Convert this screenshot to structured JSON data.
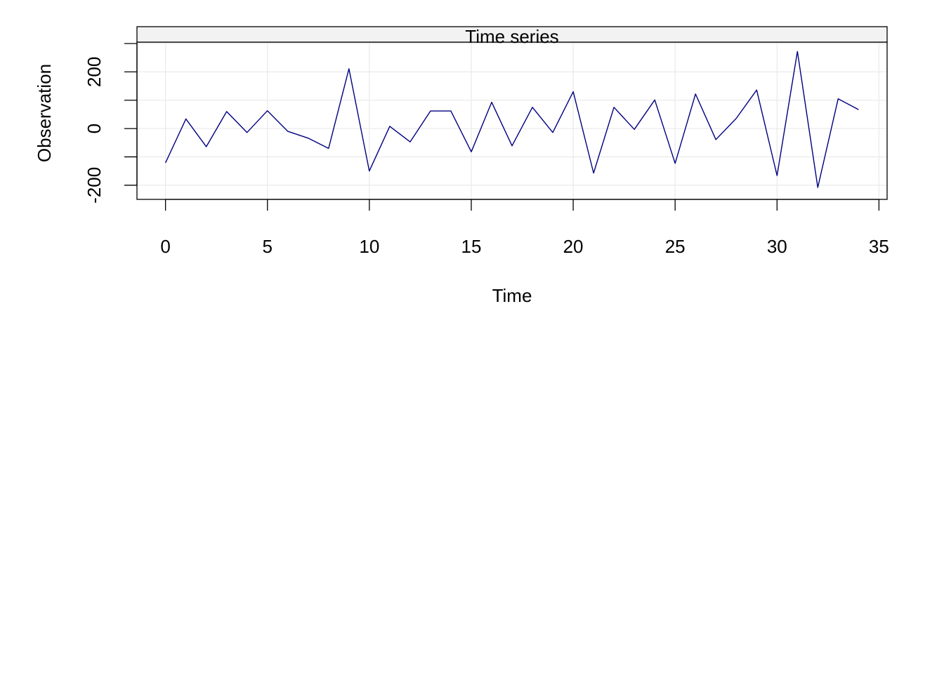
{
  "chart_data": {
    "type": "line",
    "strip_title": "Time series",
    "xlabel": "Time",
    "ylabel": "Observation",
    "xlim": [
      -1.4,
      35.4
    ],
    "ylim": [
      -250,
      305
    ],
    "x_ticks": [
      0,
      5,
      10,
      15,
      20,
      25,
      30,
      35
    ],
    "x_tick_labels": [
      "0",
      "5",
      "10",
      "15",
      "20",
      "25",
      "30",
      "35"
    ],
    "y_ticks": [
      -200,
      -100,
      0,
      100,
      200,
      300
    ],
    "y_tick_labels": [
      "-200",
      "",
      "0",
      "",
      "200",
      ""
    ],
    "grid": true,
    "line_color": "#000080",
    "grid_color": "#ebebeb",
    "strip_color": "#f2f2f2",
    "series": [
      {
        "x": [
          0,
          1,
          2,
          3,
          4,
          5,
          6,
          7,
          8,
          9,
          10,
          11,
          12,
          13,
          14,
          15,
          16,
          17,
          18,
          19,
          20,
          21,
          22,
          23,
          24,
          25,
          26,
          27,
          28,
          29,
          30,
          31,
          32,
          33,
          34
        ],
        "values": [
          -121,
          34,
          -64,
          60,
          -14,
          63,
          -10,
          -34,
          -70,
          211,
          -150,
          8,
          -47,
          62,
          62,
          -82,
          93,
          -61,
          75,
          -14,
          130,
          -157,
          75,
          -3,
          101,
          -123,
          122,
          -39,
          36,
          136,
          -166,
          272,
          -208,
          105,
          67
        ]
      }
    ]
  }
}
